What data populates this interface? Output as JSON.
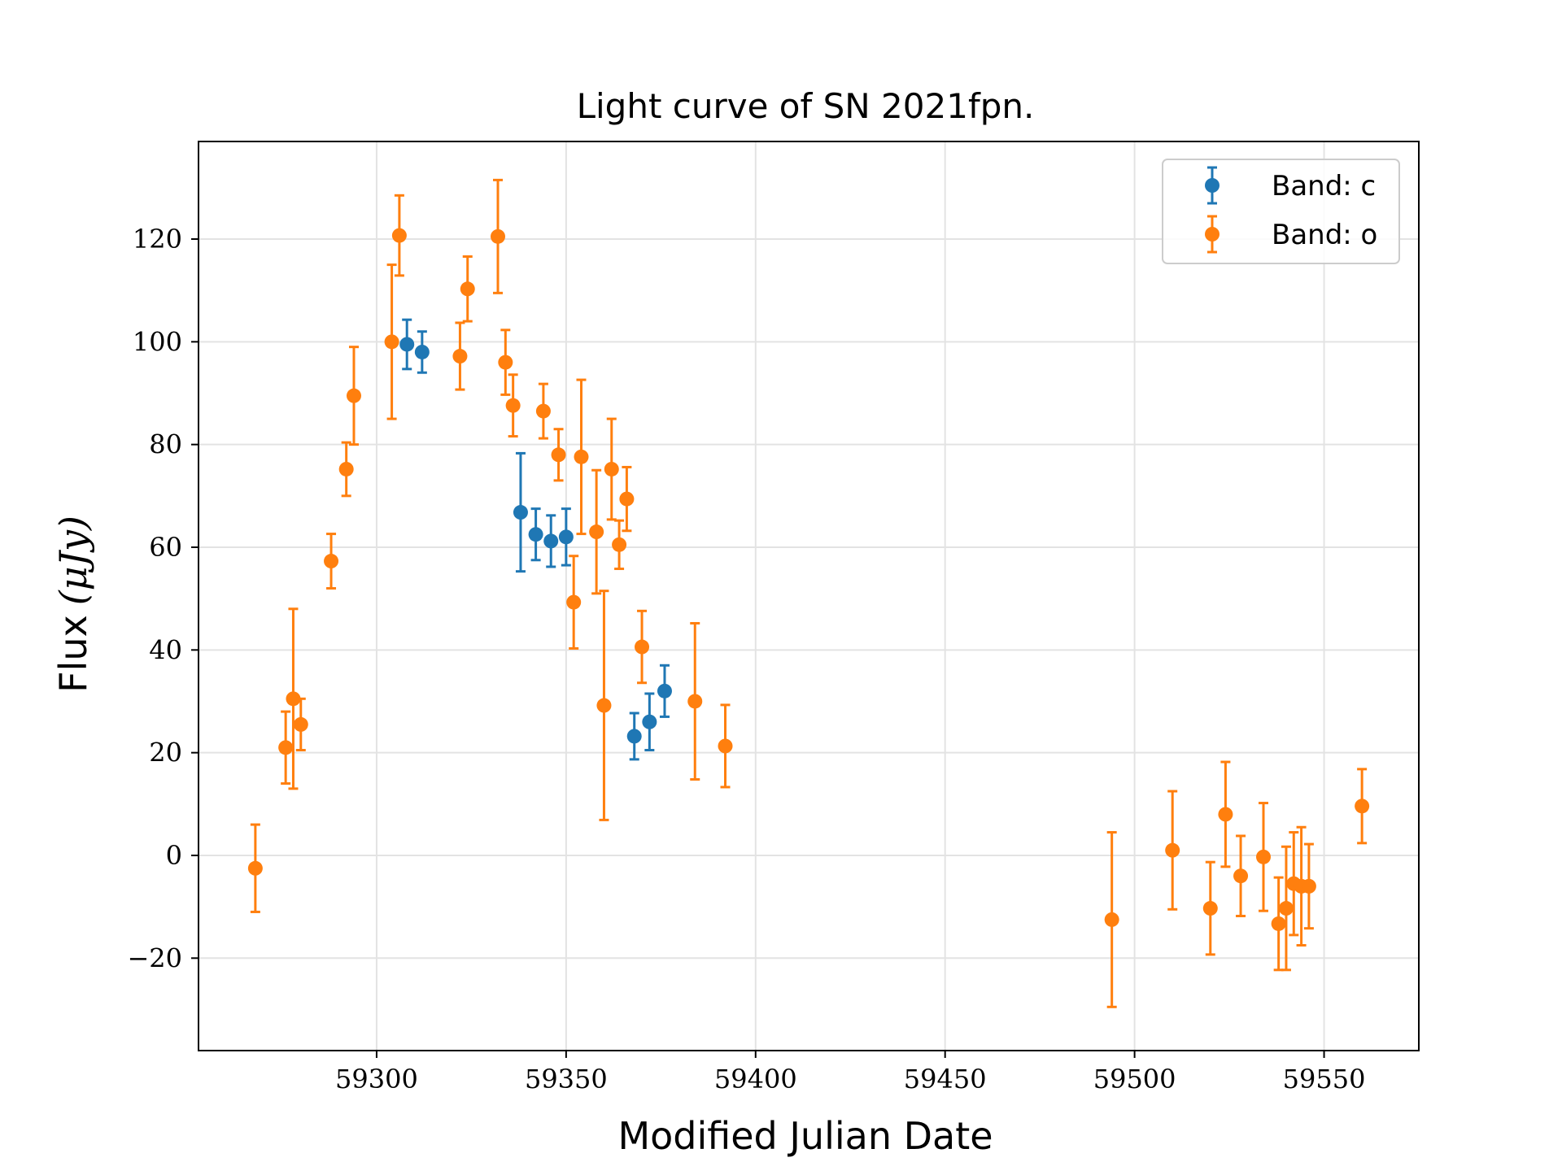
{
  "chart_data": {
    "type": "scatter",
    "title": "Light curve of SN 2021fpn.",
    "xlabel": "Modified Julian Date",
    "ylabel_text": "Flux",
    "ylabel_unit": "(μJy)",
    "xlim": [
      59253,
      59575
    ],
    "ylim": [
      -38,
      139
    ],
    "x_ticks": [
      59300,
      59350,
      59400,
      59450,
      59500,
      59550
    ],
    "y_ticks": [
      -20,
      0,
      20,
      40,
      60,
      80,
      100,
      120
    ],
    "y_tick_labels": [
      "−20",
      "0",
      "20",
      "40",
      "60",
      "80",
      "100",
      "120"
    ],
    "grid": true,
    "legend_position": "top-right",
    "series": [
      {
        "name": "Band: c",
        "color": "#1f77b4",
        "points": [
          {
            "x": 59308,
            "y": 99.5,
            "err": 4.8
          },
          {
            "x": 59312,
            "y": 98.0,
            "err": 4.0
          },
          {
            "x": 59338,
            "y": 66.8,
            "err": 11.5
          },
          {
            "x": 59342,
            "y": 62.5,
            "err": 5.0
          },
          {
            "x": 59346,
            "y": 61.2,
            "err": 5.0
          },
          {
            "x": 59350,
            "y": 62.0,
            "err": 5.5
          },
          {
            "x": 59368,
            "y": 23.2,
            "err": 4.5
          },
          {
            "x": 59372,
            "y": 26.0,
            "err": 5.5
          },
          {
            "x": 59376,
            "y": 32.0,
            "err": 5.0
          }
        ]
      },
      {
        "name": "Band: o",
        "color": "#ff7f0e",
        "points": [
          {
            "x": 59268,
            "y": -2.5,
            "err": 8.5
          },
          {
            "x": 59276,
            "y": 21.0,
            "err": 7.0
          },
          {
            "x": 59278,
            "y": 30.5,
            "err": 17.5
          },
          {
            "x": 59280,
            "y": 25.5,
            "err": 5.0
          },
          {
            "x": 59288,
            "y": 57.3,
            "err": 5.3
          },
          {
            "x": 59292,
            "y": 75.2,
            "err": 5.2
          },
          {
            "x": 59294,
            "y": 89.5,
            "err": 9.5
          },
          {
            "x": 59304,
            "y": 100.0,
            "err": 15.0
          },
          {
            "x": 59306,
            "y": 120.7,
            "err": 7.8
          },
          {
            "x": 59322,
            "y": 97.2,
            "err": 6.5
          },
          {
            "x": 59324,
            "y": 110.3,
            "err": 6.3
          },
          {
            "x": 59332,
            "y": 120.5,
            "err": 11.0
          },
          {
            "x": 59334,
            "y": 96.0,
            "err": 6.3
          },
          {
            "x": 59336,
            "y": 87.6,
            "err": 6.0
          },
          {
            "x": 59344,
            "y": 86.5,
            "err": 5.3
          },
          {
            "x": 59348,
            "y": 78.0,
            "err": 5.0
          },
          {
            "x": 59352,
            "y": 49.3,
            "err": 9.0
          },
          {
            "x": 59354,
            "y": 77.6,
            "err": 15.0
          },
          {
            "x": 59358,
            "y": 63.0,
            "err": 12.0
          },
          {
            "x": 59360,
            "y": 29.2,
            "err": 22.3
          },
          {
            "x": 59362,
            "y": 75.2,
            "err": 9.8
          },
          {
            "x": 59364,
            "y": 60.5,
            "err": 4.7
          },
          {
            "x": 59366,
            "y": 69.4,
            "err": 6.2
          },
          {
            "x": 59370,
            "y": 40.6,
            "err": 7.0
          },
          {
            "x": 59384,
            "y": 30.0,
            "err": 15.2
          },
          {
            "x": 59392,
            "y": 21.3,
            "err": 8.0
          },
          {
            "x": 59494,
            "y": -12.5,
            "err": 17.0
          },
          {
            "x": 59510,
            "y": 1.0,
            "err": 11.5
          },
          {
            "x": 59520,
            "y": -10.3,
            "err": 9.0
          },
          {
            "x": 59524,
            "y": 8.0,
            "err": 10.2
          },
          {
            "x": 59528,
            "y": -4.0,
            "err": 7.8
          },
          {
            "x": 59534,
            "y": -0.3,
            "err": 10.5
          },
          {
            "x": 59538,
            "y": -13.3,
            "err": 9.0
          },
          {
            "x": 59540,
            "y": -10.3,
            "err": 12.0
          },
          {
            "x": 59542,
            "y": -5.5,
            "err": 10.0
          },
          {
            "x": 59544,
            "y": -6.0,
            "err": 11.5
          },
          {
            "x": 59546,
            "y": -6.0,
            "err": 8.2
          },
          {
            "x": 59560,
            "y": 9.6,
            "err": 7.2
          }
        ]
      }
    ]
  }
}
